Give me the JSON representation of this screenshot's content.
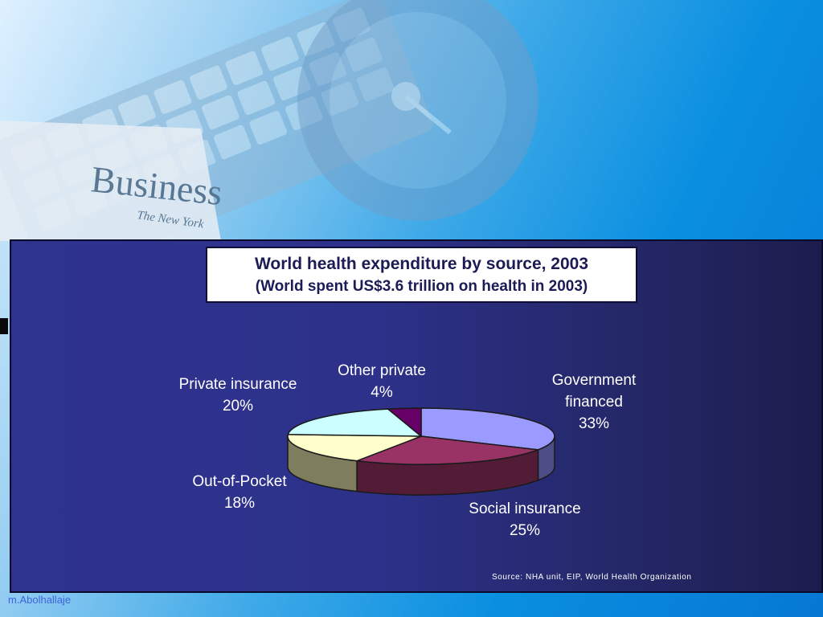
{
  "chart_data": {
    "type": "pie",
    "title": "World health expenditure by source, 2003",
    "subtitle": "(World spent US$3.6 trillion on health in 2003)",
    "slices": [
      {
        "name": "Government financed",
        "value": 33,
        "label_pct": "33%",
        "color": "#9a9aff",
        "side_color": "#4d4d88"
      },
      {
        "name": "Social insurance",
        "value": 25,
        "label_pct": "25%",
        "color": "#993366",
        "side_color": "#521c37"
      },
      {
        "name": "Out-of-Pocket",
        "value": 18,
        "label_pct": "18%",
        "color": "#ffffcc",
        "side_color": "#7e7e5e"
      },
      {
        "name": "Private insurance",
        "value": 20,
        "label_pct": "20%",
        "color": "#ccffff",
        "side_color": "#6a8a8a"
      },
      {
        "name": "Other private",
        "value": 4,
        "label_pct": "4%",
        "color": "#660066",
        "side_color": "#330033"
      }
    ],
    "labels": {
      "government": {
        "line1": "Government",
        "line2": "financed",
        "pct": "33%"
      },
      "social": {
        "line1": "Social insurance",
        "pct": "25%"
      },
      "oop": {
        "line1": "Out-of-Pocket",
        "pct": "18%"
      },
      "private_ins": {
        "line1": "Private insurance",
        "pct": "20%"
      },
      "other": {
        "line1": "Other private",
        "pct": "4%"
      }
    },
    "source": "Source: NHA unit, EIP, World Health Organization"
  },
  "footer": {
    "author": "m.Abolhallaje"
  },
  "background": {
    "newspaper_text": "Business",
    "masthead": "The New York"
  }
}
